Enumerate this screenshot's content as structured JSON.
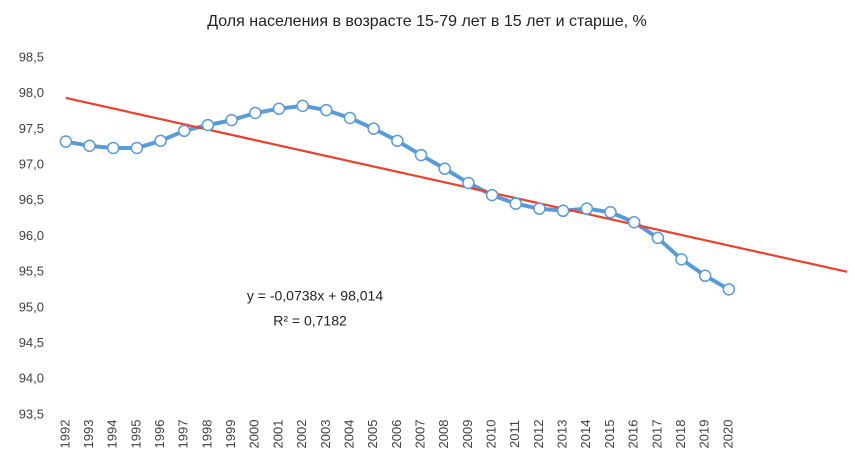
{
  "chart_data": {
    "type": "line",
    "title": "Доля населения в возрасте 15-79 лет в 15 лет и старше, %",
    "categories": [
      "1992",
      "1993",
      "1994",
      "1995",
      "1996",
      "1997",
      "1998",
      "1999",
      "2000",
      "2001",
      "2002",
      "2003",
      "2004",
      "2005",
      "2006",
      "2007",
      "2008",
      "2009",
      "2010",
      "2011",
      "2012",
      "2013",
      "2014",
      "2015",
      "2016",
      "2017",
      "2018",
      "2019",
      "2020"
    ],
    "series": [
      {
        "color": "#5b9bd5",
        "values": [
          97.33,
          97.27,
          97.24,
          97.24,
          97.34,
          97.48,
          97.56,
          97.63,
          97.73,
          97.79,
          97.83,
          97.77,
          97.66,
          97.51,
          97.34,
          97.14,
          96.95,
          96.75,
          96.58,
          96.46,
          96.39,
          96.36,
          96.39,
          96.34,
          96.2,
          95.98,
          95.68,
          95.45,
          95.26
        ]
      }
    ],
    "trendline": {
      "type": "linear",
      "color": "#e8412c",
      "slope": -0.0738,
      "intercept": 98.014,
      "forecast_forward": 5,
      "equation_label": "y = -0,0738x + 98,014",
      "r2_label": "R² = 0,7182"
    },
    "ylim": [
      93.5,
      98.5
    ],
    "yticks": [
      {
        "value": 93.5,
        "label": "93,5"
      },
      {
        "value": 94,
        "label": "94,0"
      },
      {
        "value": 94.5,
        "label": "94,5"
      },
      {
        "value": 95,
        "label": "95,0"
      },
      {
        "value": 95.5,
        "label": "95,5"
      },
      {
        "value": 96,
        "label": "96,0"
      },
      {
        "value": 96.5,
        "label": "96,5"
      },
      {
        "value": 97,
        "label": "97,0"
      },
      {
        "value": 97.5,
        "label": "97,5"
      },
      {
        "value": 98,
        "label": "98,0"
      },
      {
        "value": 98.5,
        "label": "98,5"
      }
    ],
    "grid": false
  }
}
